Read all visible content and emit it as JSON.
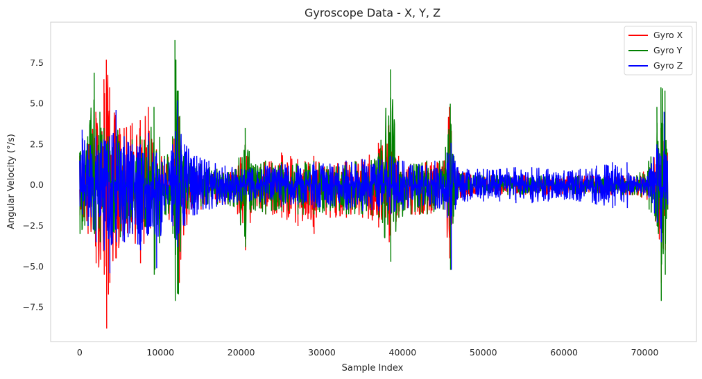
{
  "chart_data": {
    "type": "line",
    "title": "Gyroscope Data - X, Y, Z",
    "xlabel": "Sample Index",
    "ylabel": "Angular Velocity (°/s)",
    "xlim": [
      -3600,
      76400
    ],
    "ylim": [
      -9.6,
      10.0
    ],
    "xticks": [
      0,
      10000,
      20000,
      30000,
      40000,
      50000,
      60000,
      70000
    ],
    "xtick_labels": [
      "0",
      "10000",
      "20000",
      "30000",
      "40000",
      "50000",
      "60000",
      "70000"
    ],
    "yticks": [
      -7.5,
      -5.0,
      -2.5,
      0.0,
      2.5,
      5.0,
      7.5
    ],
    "ytick_labels": [
      "−7.5",
      "−5.0",
      "−2.5",
      "0.0",
      "2.5",
      "5.0",
      "7.5"
    ],
    "grid": false,
    "legend": "top-right",
    "n_samples": 72800,
    "series": [
      {
        "name": "Gyro X",
        "color": "#ff0000",
        "envelope": {
          "x": [
            0,
            1000,
            2000,
            3000,
            3300,
            3700,
            4500,
            5500,
            6500,
            7500,
            8500,
            9500,
            10500,
            11500,
            12300,
            13500,
            15000,
            17000,
            19000,
            20500,
            21500,
            23000,
            25000,
            27000,
            29000,
            31000,
            33000,
            35000,
            37000,
            38300,
            39500,
            41000,
            43000,
            45000,
            45800,
            46500,
            48000,
            50000,
            53000,
            56000,
            59000,
            62000,
            65000,
            67800,
            69000,
            70500,
            71500,
            72000,
            72500,
            72800
          ],
          "upper": [
            1.8,
            2.5,
            4.5,
            6.5,
            7.7,
            6.0,
            4.5,
            3.5,
            3.8,
            4.0,
            4.8,
            2.2,
            1.6,
            2.5,
            4.2,
            1.5,
            1.3,
            1.0,
            0.8,
            2.5,
            1.2,
            1.5,
            2.0,
            1.6,
            1.8,
            1.2,
            1.5,
            1.6,
            2.6,
            3.7,
            1.8,
            1.3,
            1.5,
            1.5,
            4.8,
            1.0,
            0.7,
            0.6,
            0.6,
            0.6,
            0.6,
            0.6,
            0.6,
            0.6,
            0.6,
            1.0,
            2.5,
            3.5,
            4.5,
            2.0
          ],
          "lower": [
            -1.8,
            -3.0,
            -4.8,
            -5.5,
            -8.8,
            -6.0,
            -4.5,
            -3.5,
            -3.0,
            -4.8,
            -3.0,
            -2.2,
            -1.6,
            -2.5,
            -6.0,
            -1.8,
            -1.5,
            -1.2,
            -1.3,
            -4.0,
            -1.5,
            -1.8,
            -2.0,
            -2.5,
            -3.0,
            -2.0,
            -2.0,
            -2.0,
            -2.6,
            -3.5,
            -2.0,
            -1.8,
            -1.8,
            -1.5,
            -4.5,
            -0.9,
            -0.7,
            -0.6,
            -0.6,
            -0.6,
            -0.6,
            -0.6,
            -0.6,
            -0.6,
            -0.6,
            -1.0,
            -2.5,
            -6.0,
            -4.0,
            -1.5
          ]
        }
      },
      {
        "name": "Gyro Y",
        "color": "#008000",
        "envelope": {
          "x": [
            0,
            1000,
            1800,
            2500,
            3000,
            3500,
            4500,
            5500,
            6500,
            7500,
            8500,
            9200,
            10500,
            11500,
            11800,
            12200,
            13500,
            15000,
            17000,
            19000,
            20500,
            21500,
            23000,
            25000,
            27000,
            29000,
            31000,
            33000,
            35000,
            37000,
            38500,
            39500,
            41000,
            43000,
            45000,
            45900,
            46500,
            48000,
            50000,
            53000,
            56000,
            59000,
            62000,
            65000,
            67800,
            69000,
            70500,
            71500,
            72000,
            72500,
            72800
          ],
          "upper": [
            2.0,
            3.0,
            6.9,
            4.5,
            3.5,
            3.0,
            3.5,
            3.0,
            2.8,
            3.0,
            2.8,
            4.8,
            1.8,
            3.0,
            8.9,
            5.8,
            1.5,
            1.3,
            1.0,
            0.8,
            3.5,
            1.2,
            1.5,
            1.4,
            1.3,
            1.5,
            1.2,
            1.4,
            1.5,
            1.8,
            7.1,
            1.5,
            1.3,
            1.5,
            1.5,
            5.0,
            1.0,
            0.7,
            0.6,
            0.6,
            0.6,
            0.6,
            0.6,
            0.6,
            0.6,
            0.6,
            1.5,
            4.8,
            6.0,
            5.8,
            1.5
          ],
          "lower": [
            -3.0,
            -2.5,
            -3.0,
            -3.5,
            -3.0,
            -3.0,
            -3.5,
            -3.0,
            -2.8,
            -3.0,
            -3.0,
            -5.5,
            -1.8,
            -3.0,
            -7.1,
            -6.7,
            -1.5,
            -1.3,
            -1.2,
            -1.3,
            -3.8,
            -1.5,
            -1.8,
            -1.6,
            -1.8,
            -1.8,
            -1.6,
            -1.8,
            -1.8,
            -2.0,
            -4.7,
            -2.0,
            -1.8,
            -1.8,
            -1.5,
            -5.2,
            -0.9,
            -0.7,
            -0.6,
            -0.6,
            -0.6,
            -0.6,
            -0.6,
            -0.6,
            -0.6,
            -0.6,
            -1.5,
            -2.5,
            -7.1,
            -5.5,
            -1.5
          ]
        }
      },
      {
        "name": "Gyro Z",
        "color": "#0000ff",
        "envelope": {
          "x": [
            0,
            300,
            1000,
            2000,
            3000,
            3700,
            4500,
            5500,
            6500,
            7500,
            8500,
            9500,
            10500,
            11500,
            12100,
            13000,
            14500,
            16000,
            18000,
            20000,
            21000,
            23000,
            25000,
            27000,
            29000,
            31000,
            33000,
            35000,
            37000,
            38500,
            40000,
            42000,
            44000,
            45500,
            46000,
            46500,
            48000,
            50000,
            52000,
            54000,
            56000,
            58000,
            59000,
            60000,
            62000,
            64000,
            66000,
            67800,
            68200,
            69500,
            70500,
            71500,
            72000,
            72400,
            72800
          ],
          "upper": [
            1.5,
            3.4,
            2.5,
            3.0,
            2.8,
            3.0,
            4.6,
            3.0,
            2.5,
            2.5,
            3.2,
            2.0,
            1.6,
            2.5,
            5.2,
            2.5,
            1.8,
            1.5,
            1.2,
            1.0,
            1.0,
            1.2,
            1.3,
            1.2,
            1.4,
            1.3,
            1.5,
            1.6,
            1.6,
            1.8,
            1.5,
            1.3,
            1.5,
            2.0,
            2.6,
            1.5,
            1.0,
            1.0,
            1.0,
            1.1,
            1.1,
            1.0,
            0.8,
            0.9,
            1.0,
            1.2,
            1.4,
            1.4,
            0.6,
            0.5,
            0.8,
            2.5,
            1.8,
            4.5,
            1.5
          ],
          "lower": [
            -1.3,
            -1.8,
            -2.5,
            -3.5,
            -4.0,
            -5.4,
            -3.5,
            -3.5,
            -3.0,
            -4.0,
            -3.0,
            -5.1,
            -1.6,
            -2.5,
            -3.8,
            -2.5,
            -1.8,
            -1.5,
            -1.2,
            -1.0,
            -1.0,
            -1.2,
            -1.3,
            -1.2,
            -1.4,
            -1.3,
            -1.5,
            -1.6,
            -1.6,
            -1.8,
            -1.5,
            -1.3,
            -1.5,
            -2.0,
            -5.2,
            -1.5,
            -1.0,
            -1.0,
            -1.0,
            -1.1,
            -1.1,
            -1.0,
            -0.8,
            -0.9,
            -1.0,
            -1.2,
            -1.4,
            -1.4,
            -0.6,
            -0.5,
            -0.8,
            -2.3,
            -3.5,
            -1.5,
            -1.2
          ]
        }
      }
    ]
  }
}
